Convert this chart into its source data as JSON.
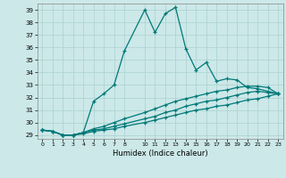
{
  "xlabel": "Humidex (Indice chaleur)",
  "bg_color": "#cce8e8",
  "grid_color": "#aad0d0",
  "line_color": "#007878",
  "xlim": [
    -0.5,
    23.5
  ],
  "ylim": [
    28.7,
    39.5
  ],
  "yticks": [
    29,
    30,
    31,
    32,
    33,
    34,
    35,
    36,
    37,
    38,
    39
  ],
  "xtick_positions": [
    0,
    1,
    2,
    3,
    4,
    5,
    6,
    7,
    8,
    10,
    11,
    12,
    13,
    14,
    15,
    16,
    17,
    18,
    19,
    20,
    21,
    22,
    23
  ],
  "xtick_labels": [
    "0",
    "1",
    "2",
    "3",
    "4",
    "5",
    "6",
    "7",
    "8",
    "10",
    "11",
    "12",
    "13",
    "14",
    "15",
    "16",
    "17",
    "18",
    "19",
    "20",
    "21",
    "22",
    "23"
  ],
  "line1_x": [
    0,
    1,
    2,
    3,
    4,
    5,
    6,
    7,
    8,
    10,
    11,
    12,
    13,
    14,
    15,
    16,
    17,
    18,
    19,
    20,
    21,
    22,
    23
  ],
  "line1_y": [
    29.4,
    29.3,
    29.0,
    29.0,
    29.2,
    31.7,
    32.3,
    33.0,
    35.7,
    39.0,
    37.2,
    38.7,
    39.2,
    35.9,
    34.2,
    34.8,
    33.3,
    33.5,
    33.4,
    32.8,
    32.7,
    32.5,
    32.3
  ],
  "line2_x": [
    0,
    1,
    2,
    3,
    4,
    5,
    6,
    7,
    8,
    10,
    11,
    12,
    13,
    14,
    15,
    16,
    17,
    18,
    19,
    20,
    21,
    22,
    23
  ],
  "line2_y": [
    29.4,
    29.3,
    29.0,
    29.0,
    29.2,
    29.5,
    29.7,
    30.0,
    30.3,
    30.8,
    31.1,
    31.4,
    31.7,
    31.9,
    32.1,
    32.3,
    32.5,
    32.6,
    32.8,
    32.9,
    32.9,
    32.8,
    32.3
  ],
  "line3_x": [
    0,
    1,
    2,
    3,
    4,
    5,
    6,
    7,
    8,
    10,
    11,
    12,
    13,
    14,
    15,
    16,
    17,
    18,
    19,
    20,
    21,
    22,
    23
  ],
  "line3_y": [
    29.4,
    29.3,
    29.0,
    29.0,
    29.2,
    29.4,
    29.5,
    29.7,
    29.9,
    30.3,
    30.5,
    30.8,
    31.0,
    31.3,
    31.5,
    31.7,
    31.8,
    32.0,
    32.2,
    32.4,
    32.5,
    32.4,
    32.3
  ],
  "line4_x": [
    0,
    1,
    2,
    3,
    4,
    5,
    6,
    7,
    8,
    10,
    11,
    12,
    13,
    14,
    15,
    16,
    17,
    18,
    19,
    20,
    21,
    22,
    23
  ],
  "line4_y": [
    29.4,
    29.3,
    29.0,
    29.0,
    29.1,
    29.3,
    29.4,
    29.5,
    29.7,
    30.0,
    30.2,
    30.4,
    30.6,
    30.8,
    31.0,
    31.1,
    31.3,
    31.4,
    31.6,
    31.8,
    31.9,
    32.1,
    32.3
  ]
}
